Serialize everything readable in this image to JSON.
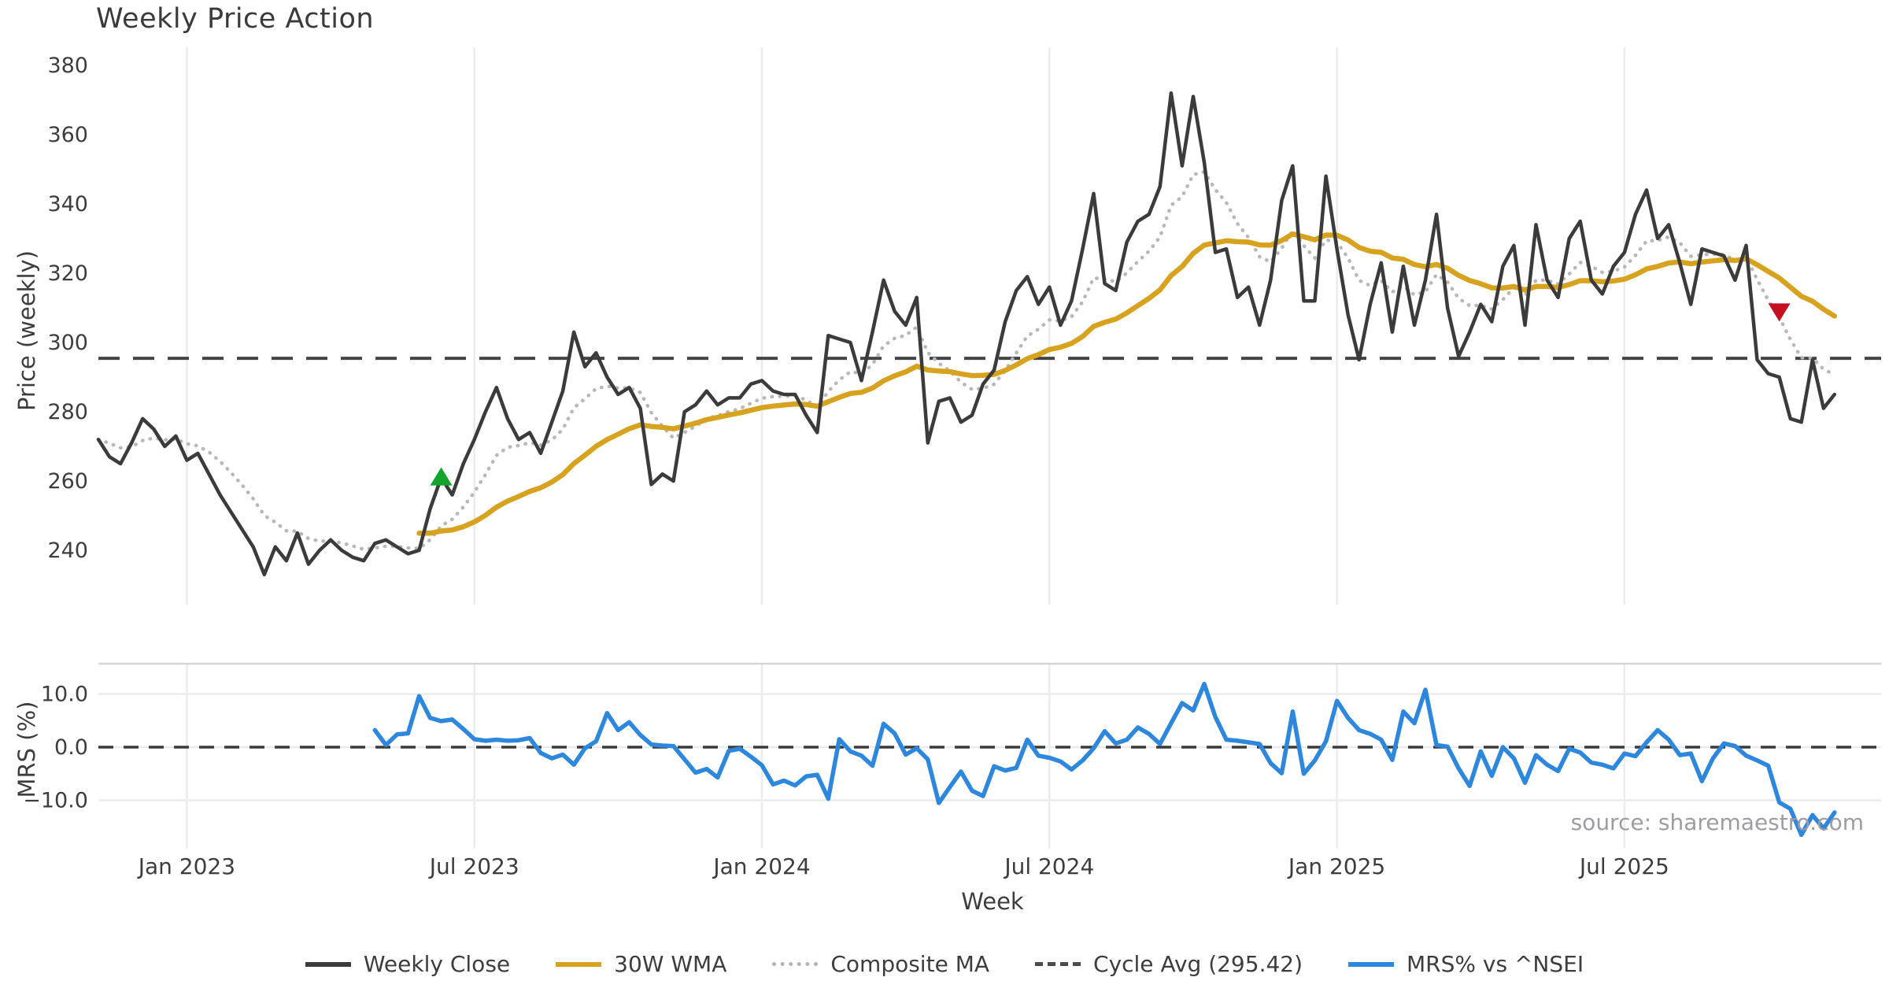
{
  "title": "Weekly Price Action",
  "source_note": "source: sharemaestro.com",
  "axes": {
    "price": {
      "ylabel": "Price (weekly)",
      "yticks": [
        "380",
        "360",
        "340",
        "320",
        "300",
        "280",
        "260",
        "240"
      ],
      "ytick_values": [
        380,
        360,
        340,
        320,
        300,
        280,
        260,
        240
      ]
    },
    "mrs": {
      "ylabel": "MRS (%)",
      "yticks": [
        "10.0",
        "0.0",
        "−10.0"
      ],
      "ytick_values": [
        10,
        0,
        -10
      ]
    },
    "x": {
      "xlabel": "Week",
      "ticks": [
        {
          "label": "Jan 2023",
          "week": 8
        },
        {
          "label": "Jul 2023",
          "week": 34
        },
        {
          "label": "Jan 2024",
          "week": 60
        },
        {
          "label": "Jul 2024",
          "week": 86
        },
        {
          "label": "Jan 2025",
          "week": 112
        },
        {
          "label": "Jul 2025",
          "week": 138
        }
      ]
    }
  },
  "legend": {
    "items": [
      {
        "label": "Weekly Close",
        "color": "#3b3b3b",
        "style": "solid"
      },
      {
        "label": "30W WMA",
        "color": "#d7a21e",
        "style": "solid"
      },
      {
        "label": "Composite MA",
        "color": "#b3b3b3",
        "style": "dotted"
      },
      {
        "label": "Cycle Avg (295.42)",
        "color": "#4a4a4a",
        "style": "dashed"
      },
      {
        "label": "MRS% vs ^NSEI",
        "color": "#2d87dd",
        "style": "solid"
      }
    ]
  },
  "colors": {
    "weekly_close": "#3b3b3b",
    "wma": "#d7a21e",
    "composite": "#b8b8b8",
    "cycle_avg": "#444444",
    "mrs": "#2d87dd",
    "buy_marker": "#12a42b",
    "sell_marker": "#c50f22",
    "gridline": "#ececec",
    "panel_edge": "#d6d6d6",
    "tick_text": "#3d3d3d"
  },
  "chart_data": [
    {
      "type": "line",
      "name": "price_panel",
      "ylabel": "Price (weekly)",
      "x_unit": "week_index",
      "ylim": [
        227,
        385
      ],
      "grid": "vertical-only",
      "cycle_avg": 295.42,
      "series": [
        {
          "name": "Weekly Close",
          "values": [
            272,
            267,
            265,
            271,
            278,
            275,
            270,
            273,
            266,
            268,
            262,
            256,
            251,
            246,
            241,
            233,
            241,
            237,
            245,
            236,
            240,
            243,
            240,
            238,
            237,
            242,
            243,
            241,
            239,
            240,
            252,
            261,
            256,
            265,
            272,
            280,
            287,
            278,
            272,
            274,
            268,
            277,
            286,
            303,
            293,
            297,
            290,
            285,
            287,
            281,
            259,
            262,
            260,
            280,
            282,
            286,
            282,
            284,
            284,
            288,
            289,
            286,
            285,
            285,
            279,
            274,
            302,
            301,
            300,
            289,
            303,
            318,
            309,
            305,
            313,
            271,
            283,
            284,
            277,
            279,
            288,
            292,
            306,
            315,
            319,
            311,
            316,
            305,
            312,
            327,
            343,
            317,
            315,
            329,
            335,
            337,
            345,
            372,
            351,
            371,
            352,
            326,
            327,
            313,
            316,
            305,
            318,
            341,
            351,
            312,
            312,
            348,
            327,
            308,
            295,
            311,
            323,
            303,
            322,
            305,
            318,
            337,
            310,
            296,
            303,
            311,
            306,
            322,
            328,
            305,
            334,
            318,
            313,
            330,
            335,
            318,
            314,
            322,
            326,
            337,
            344,
            330,
            334,
            323,
            311,
            327,
            326,
            325,
            318,
            328,
            295,
            291,
            290,
            278,
            277,
            295,
            281,
            285
          ]
        },
        {
          "name": "30W WMA",
          "derived": "weighted_ma_of_weekly_close",
          "window": 30
        },
        {
          "name": "Composite MA",
          "derived": "ema_of_weekly_close",
          "alpha": 0.22
        },
        {
          "name": "Cycle Avg",
          "constant": 295.42
        }
      ],
      "markers": [
        {
          "type": "triangle-up",
          "week": 31,
          "value": 261,
          "color": "#12a42b",
          "meaning": "bullish-cross"
        },
        {
          "type": "triangle-down",
          "week": 152,
          "value": 309,
          "color": "#c50f22",
          "meaning": "bearish-cross"
        }
      ]
    },
    {
      "type": "line",
      "name": "mrs_panel",
      "ylabel": "MRS (%)",
      "x_unit": "week_index",
      "ylim": [
        -18,
        15.6
      ],
      "zero_line_dashed": true,
      "series": [
        {
          "name": "MRS% vs ^NSEI",
          "start_week": 25,
          "values": [
            3.2,
            0.4,
            2.4,
            2.6,
            9.6,
            5.5,
            4.9,
            5.2,
            3.4,
            1.5,
            1.2,
            1.4,
            1.2,
            1.3,
            1.7,
            -1.1,
            -2.1,
            -1.4,
            -3.3,
            -0.2,
            1.1,
            6.4,
            3.2,
            4.7,
            2.3,
            0.5,
            0.3,
            0.2,
            -2.3,
            -4.8,
            -4.1,
            -5.7,
            -0.7,
            -0.3,
            -1.8,
            -3.4,
            -7.0,
            -6.3,
            -7.2,
            -5.5,
            -5.2,
            -9.7,
            1.5,
            -0.8,
            -1.6,
            -3.5,
            4.4,
            2.6,
            -1.4,
            -0.2,
            -2.3,
            -10.5,
            -7.5,
            -4.6,
            -8.2,
            -9.2,
            -3.6,
            -4.4,
            -3.9,
            1.4,
            -1.6,
            -2.0,
            -2.7,
            -4.2,
            -2.5,
            -0.2,
            3.0,
            0.7,
            1.4,
            3.7,
            2.5,
            0.6,
            4.5,
            8.3,
            6.9,
            11.9,
            5.7,
            1.4,
            1.2,
            0.9,
            0.6,
            -3.0,
            -4.9,
            6.7,
            -5.0,
            -2.5,
            1.1,
            8.7,
            5.5,
            3.2,
            2.5,
            1.4,
            -2.4,
            6.7,
            4.5,
            10.8,
            0.4,
            0.1,
            -4.0,
            -7.3,
            -0.8,
            -5.4,
            0.0,
            -2.1,
            -6.7,
            -1.5,
            -3.3,
            -4.5,
            -0.3,
            -1.0,
            -2.9,
            -3.3,
            -4.0,
            -1.2,
            -1.7,
            0.9,
            3.2,
            1.4,
            -1.5,
            -1.2,
            -6.4,
            -2.1,
            0.7,
            0.2,
            -1.6,
            -2.5,
            -3.5,
            -10.4,
            -11.6,
            -16.5,
            -12.8,
            -15.3,
            -12.3
          ]
        }
      ]
    }
  ]
}
